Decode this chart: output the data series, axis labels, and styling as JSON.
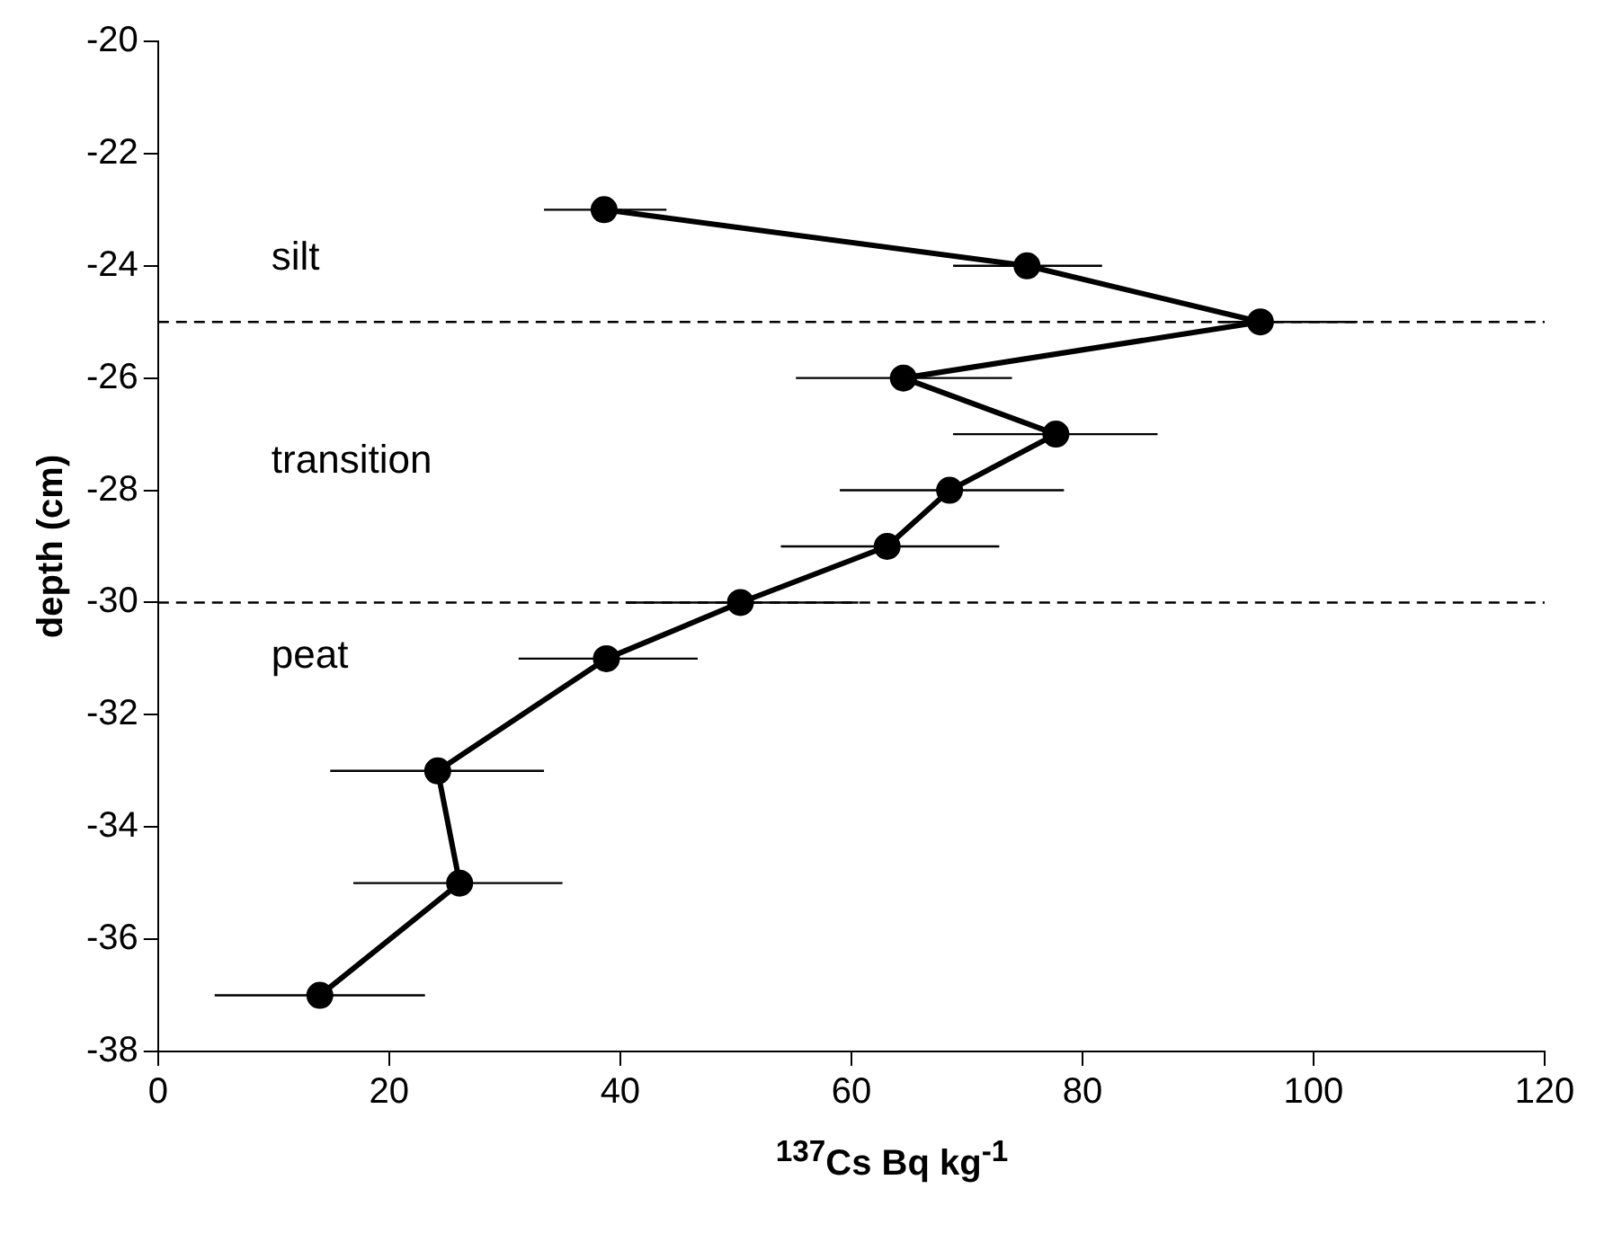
{
  "chart_data": {
    "type": "line",
    "xlabel": "$^{137}$Cs Bq kg$^{-1}$",
    "ylabel": "depth (cm)",
    "xlim": [
      0,
      120
    ],
    "xticks": [
      0,
      20,
      40,
      60,
      80,
      100,
      120
    ],
    "ylim": [
      -38,
      -20
    ],
    "yticks": [
      -38,
      -36,
      -34,
      -32,
      -30,
      -28,
      -26,
      -24,
      -22,
      -20
    ],
    "grid": false,
    "legend": false,
    "marker": "circle",
    "line_style": "solid",
    "series": [
      {
        "color": "#000000",
        "x": [
          38.6,
          75.2,
          95.4,
          64.5,
          77.7,
          68.5,
          63.1,
          50.4,
          38.8,
          24.2,
          26.1,
          14
        ],
        "values": [
          -23,
          -24,
          -25,
          -26,
          -27,
          -28,
          -29,
          -30,
          -31,
          -33,
          -35,
          -37
        ],
        "xerrors": [
          [
            33.4,
            44
          ],
          [
            68.8,
            81.7
          ],
          [
            91.7,
            103.8
          ],
          [
            55.2,
            73.9
          ],
          [
            68.8,
            86.5
          ],
          [
            59,
            78.4
          ],
          [
            53.9,
            72.8
          ],
          [
            40.5,
            60.6
          ],
          [
            31.2,
            46.7
          ],
          [
            14.9,
            33.4
          ],
          [
            16.9,
            35
          ],
          [
            4.9,
            23.1
          ]
        ]
      }
    ],
    "ref_lines": [
      {
        "axis": "y",
        "value": -25,
        "color": "#000000",
        "line_style": "dashed"
      },
      {
        "axis": "y",
        "value": -30,
        "color": "#000000",
        "line_style": "dashed"
      }
    ],
    "annotations": [
      "silt",
      "transition",
      "peat"
    ]
  }
}
